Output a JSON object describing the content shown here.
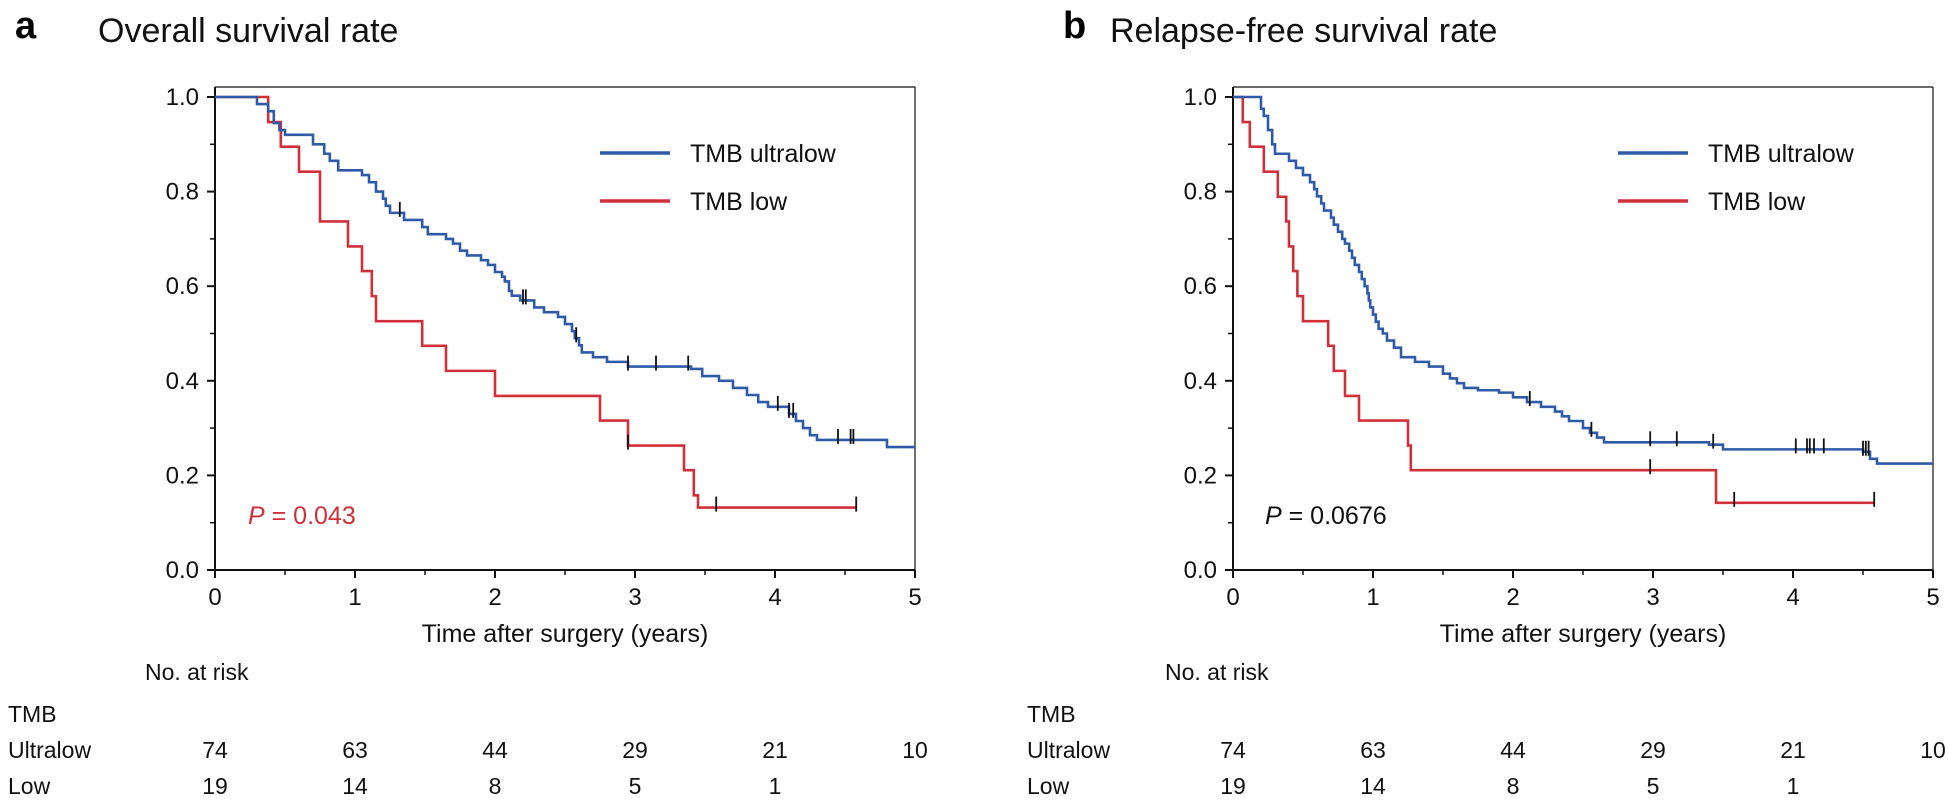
{
  "colors": {
    "ultralow": "#2e5aa8",
    "low": "#d0303a",
    "axis": "#111111",
    "pvalue_a": "#d0303a",
    "pvalue_b": "#111111"
  },
  "chart_data": [
    {
      "type": "line",
      "panel_letter": "a",
      "title": "Overall survival rate",
      "xlabel": "Time after surgery (years)",
      "ylabel": "",
      "xlim": [
        0,
        5
      ],
      "ylim": [
        0,
        1
      ],
      "xticks": [
        "0",
        "1",
        "2",
        "3",
        "4",
        "5"
      ],
      "yticks": [
        "0.0",
        "0.2",
        "0.4",
        "0.6",
        "0.8",
        "1.0"
      ],
      "legend": {
        "position": "top-right",
        "entries": [
          "TMB ultralow",
          "TMB low"
        ]
      },
      "pvalue": {
        "prefix": "P",
        "text": " = 0.043"
      },
      "series": [
        {
          "name": "TMB ultralow",
          "color_key": "ultralow",
          "steps": [
            [
              0,
              1.0
            ],
            [
              0.3,
              0.985
            ],
            [
              0.38,
              0.97
            ],
            [
              0.42,
              0.945
            ],
            [
              0.46,
              0.93
            ],
            [
              0.5,
              0.92
            ],
            [
              0.7,
              0.9
            ],
            [
              0.78,
              0.88
            ],
            [
              0.82,
              0.865
            ],
            [
              0.88,
              0.845
            ],
            [
              1.05,
              0.835
            ],
            [
              1.1,
              0.82
            ],
            [
              1.15,
              0.8
            ],
            [
              1.2,
              0.785
            ],
            [
              1.22,
              0.77
            ],
            [
              1.25,
              0.755
            ],
            [
              1.35,
              0.74
            ],
            [
              1.48,
              0.725
            ],
            [
              1.52,
              0.71
            ],
            [
              1.65,
              0.7
            ],
            [
              1.7,
              0.69
            ],
            [
              1.75,
              0.675
            ],
            [
              1.8,
              0.665
            ],
            [
              1.9,
              0.655
            ],
            [
              1.95,
              0.645
            ],
            [
              2.0,
              0.63
            ],
            [
              2.05,
              0.62
            ],
            [
              2.07,
              0.61
            ],
            [
              2.1,
              0.59
            ],
            [
              2.12,
              0.58
            ],
            [
              2.18,
              0.57
            ],
            [
              2.28,
              0.555
            ],
            [
              2.35,
              0.545
            ],
            [
              2.45,
              0.535
            ],
            [
              2.5,
              0.52
            ],
            [
              2.55,
              0.505
            ],
            [
              2.57,
              0.49
            ],
            [
              2.6,
              0.475
            ],
            [
              2.62,
              0.46
            ],
            [
              2.7,
              0.45
            ],
            [
              2.8,
              0.44
            ],
            [
              2.95,
              0.43
            ],
            [
              3.4,
              0.425
            ],
            [
              3.48,
              0.41
            ],
            [
              3.6,
              0.4
            ],
            [
              3.7,
              0.385
            ],
            [
              3.8,
              0.37
            ],
            [
              3.88,
              0.355
            ],
            [
              3.95,
              0.345
            ],
            [
              4.1,
              0.33
            ],
            [
              4.15,
              0.315
            ],
            [
              4.2,
              0.3
            ],
            [
              4.25,
              0.285
            ],
            [
              4.3,
              0.275
            ],
            [
              4.8,
              0.26
            ],
            [
              5.0,
              0.26
            ]
          ],
          "censor_x": [
            1.32,
            2.2,
            2.22,
            2.58,
            2.95,
            3.15,
            3.38,
            4.02,
            4.1,
            4.13,
            4.45,
            4.54,
            4.56
          ]
        },
        {
          "name": "TMB low",
          "color_key": "low",
          "steps": [
            [
              0,
              1.0
            ],
            [
              0.38,
              0.947
            ],
            [
              0.47,
              0.895
            ],
            [
              0.6,
              0.842
            ],
            [
              0.75,
              0.737
            ],
            [
              0.95,
              0.684
            ],
            [
              1.05,
              0.632
            ],
            [
              1.12,
              0.579
            ],
            [
              1.15,
              0.526
            ],
            [
              1.48,
              0.474
            ],
            [
              1.65,
              0.421
            ],
            [
              2.0,
              0.368
            ],
            [
              2.75,
              0.316
            ],
            [
              2.95,
              0.263
            ],
            [
              3.35,
              0.211
            ],
            [
              3.42,
              0.158
            ],
            [
              3.45,
              0.132
            ],
            [
              4.58,
              0.132
            ]
          ],
          "censor_x": [
            2.95,
            3.58,
            4.58
          ]
        }
      ],
      "risk_table": {
        "heading": "No. at risk",
        "group_label": "TMB",
        "rows": [
          {
            "name": "Ultralow",
            "values": [
              "74",
              "63",
              "44",
              "29",
              "21",
              "10"
            ]
          },
          {
            "name": "Low",
            "values": [
              "19",
              "14",
              "8",
              "5",
              "1"
            ]
          }
        ]
      }
    },
    {
      "type": "line",
      "panel_letter": "b",
      "title": "Relapse-free survival rate",
      "xlabel": "Time after surgery (years)",
      "ylabel": "",
      "xlim": [
        0,
        5
      ],
      "ylim": [
        0,
        1
      ],
      "xticks": [
        "0",
        "1",
        "2",
        "3",
        "4",
        "5"
      ],
      "yticks": [
        "0.0",
        "0.2",
        "0.4",
        "0.6",
        "0.8",
        "1.0"
      ],
      "legend": {
        "position": "top-right",
        "entries": [
          "TMB ultralow",
          "TMB low"
        ]
      },
      "pvalue": {
        "prefix": "P",
        "text": " = 0.0676"
      },
      "series": [
        {
          "name": "TMB ultralow",
          "color_key": "ultralow",
          "steps": [
            [
              0,
              1.0
            ],
            [
              0.2,
              0.975
            ],
            [
              0.22,
              0.96
            ],
            [
              0.25,
              0.93
            ],
            [
              0.28,
              0.9
            ],
            [
              0.3,
              0.88
            ],
            [
              0.4,
              0.865
            ],
            [
              0.45,
              0.85
            ],
            [
              0.5,
              0.835
            ],
            [
              0.55,
              0.82
            ],
            [
              0.58,
              0.805
            ],
            [
              0.6,
              0.79
            ],
            [
              0.63,
              0.775
            ],
            [
              0.65,
              0.76
            ],
            [
              0.7,
              0.745
            ],
            [
              0.72,
              0.73
            ],
            [
              0.75,
              0.715
            ],
            [
              0.78,
              0.7
            ],
            [
              0.8,
              0.69
            ],
            [
              0.83,
              0.675
            ],
            [
              0.85,
              0.66
            ],
            [
              0.87,
              0.645
            ],
            [
              0.9,
              0.63
            ],
            [
              0.92,
              0.615
            ],
            [
              0.94,
              0.6
            ],
            [
              0.96,
              0.585
            ],
            [
              0.97,
              0.57
            ],
            [
              0.98,
              0.555
            ],
            [
              1.0,
              0.54
            ],
            [
              1.02,
              0.525
            ],
            [
              1.04,
              0.51
            ],
            [
              1.07,
              0.5
            ],
            [
              1.1,
              0.485
            ],
            [
              1.15,
              0.47
            ],
            [
              1.2,
              0.45
            ],
            [
              1.3,
              0.44
            ],
            [
              1.4,
              0.43
            ],
            [
              1.5,
              0.415
            ],
            [
              1.55,
              0.405
            ],
            [
              1.6,
              0.395
            ],
            [
              1.65,
              0.385
            ],
            [
              1.75,
              0.38
            ],
            [
              1.9,
              0.375
            ],
            [
              2.0,
              0.365
            ],
            [
              2.1,
              0.355
            ],
            [
              2.2,
              0.345
            ],
            [
              2.3,
              0.335
            ],
            [
              2.35,
              0.325
            ],
            [
              2.4,
              0.315
            ],
            [
              2.5,
              0.3
            ],
            [
              2.55,
              0.29
            ],
            [
              2.6,
              0.28
            ],
            [
              2.65,
              0.27
            ],
            [
              3.4,
              0.265
            ],
            [
              3.5,
              0.255
            ],
            [
              4.5,
              0.25
            ],
            [
              4.55,
              0.235
            ],
            [
              4.6,
              0.225
            ],
            [
              5.0,
              0.225
            ]
          ],
          "censor_x": [
            2.12,
            2.56,
            2.98,
            3.17,
            3.43,
            4.02,
            4.1,
            4.12,
            4.15,
            4.22,
            4.5,
            4.52,
            4.54
          ]
        },
        {
          "name": "TMB low",
          "color_key": "low",
          "steps": [
            [
              0,
              1.0
            ],
            [
              0.07,
              0.947
            ],
            [
              0.12,
              0.895
            ],
            [
              0.22,
              0.842
            ],
            [
              0.32,
              0.789
            ],
            [
              0.38,
              0.737
            ],
            [
              0.4,
              0.684
            ],
            [
              0.43,
              0.632
            ],
            [
              0.46,
              0.579
            ],
            [
              0.5,
              0.526
            ],
            [
              0.68,
              0.474
            ],
            [
              0.72,
              0.421
            ],
            [
              0.8,
              0.368
            ],
            [
              0.9,
              0.316
            ],
            [
              1.25,
              0.263
            ],
            [
              1.27,
              0.211
            ],
            [
              3.45,
              0.142
            ],
            [
              4.58,
              0.142
            ]
          ],
          "censor_x": [
            2.98,
            3.58,
            4.58
          ]
        }
      ],
      "risk_table": {
        "heading": "No. at risk",
        "group_label": "TMB",
        "rows": [
          {
            "name": "Ultralow",
            "values": [
              "74",
              "63",
              "44",
              "29",
              "21",
              "10"
            ]
          },
          {
            "name": "Low",
            "values": [
              "19",
              "14",
              "8",
              "5",
              "1"
            ]
          }
        ]
      }
    }
  ]
}
